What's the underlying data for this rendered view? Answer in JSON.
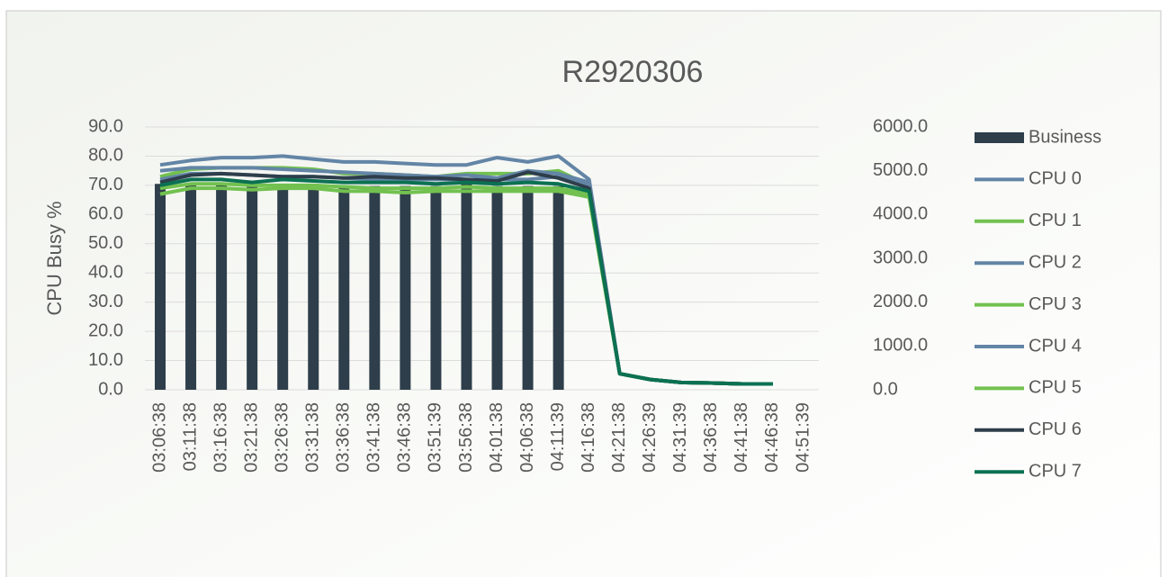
{
  "chart_data": {
    "type": "bar_line",
    "title": "R2920306",
    "y_label": "CPU Busy %",
    "categories": [
      "03:06:38",
      "03:11:38",
      "03:16:38",
      "03:21:38",
      "03:26:38",
      "03:31:38",
      "03:36:38",
      "03:41:38",
      "03:46:38",
      "03:51:39",
      "03:56:38",
      "04:01:38",
      "04:06:38",
      "04:11:39",
      "04:16:38",
      "04:21:38",
      "04:26:39",
      "04:31:39",
      "04:36:38",
      "04:41:38",
      "04:46:38",
      "04:51:39"
    ],
    "ylim": [
      0,
      90
    ],
    "yticks": [
      {
        "value": 0,
        "label": "0.0"
      },
      {
        "value": 10,
        "label": "10.0"
      },
      {
        "value": 20,
        "label": "20.0"
      },
      {
        "value": 30,
        "label": "30.0"
      },
      {
        "value": 40,
        "label": "40.0"
      },
      {
        "value": 50,
        "label": "50.0"
      },
      {
        "value": 60,
        "label": "60.0"
      },
      {
        "value": 70,
        "label": "70.0"
      },
      {
        "value": 80,
        "label": "80.0"
      },
      {
        "value": 90,
        "label": "90.0"
      }
    ],
    "y2lim": [
      0,
      6000
    ],
    "y2ticks": [
      {
        "value": 0,
        "label": "0.0"
      },
      {
        "value": 1000,
        "label": "1000.0"
      },
      {
        "value": 2000,
        "label": "2000.0"
      },
      {
        "value": 3000,
        "label": "3000.0"
      },
      {
        "value": 4000,
        "label": "4000.0"
      },
      {
        "value": 5000,
        "label": "5000.0"
      },
      {
        "value": 6000,
        "label": "6000.0"
      }
    ],
    "grid": true,
    "legend": "right",
    "series": [
      {
        "name": "Business",
        "type": "bar",
        "axis": "y2",
        "color": "#2e3e4a",
        "values": [
          4700,
          4700,
          4700,
          4650,
          4700,
          4700,
          4650,
          4650,
          4650,
          4650,
          4700,
          4650,
          4650,
          4650,
          null,
          null,
          null,
          null,
          null,
          null,
          null,
          null
        ]
      },
      {
        "name": "CPU 0",
        "type": "line",
        "color": "#6385a6",
        "values": [
          77,
          78.5,
          79.5,
          79.5,
          80,
          79,
          78,
          78,
          77.5,
          77,
          77,
          79.5,
          78,
          80,
          72,
          5.5,
          3.5,
          2.5,
          2.3,
          2,
          2,
          null
        ]
      },
      {
        "name": "CPU 1",
        "type": "line",
        "color": "#72c150",
        "values": [
          73,
          75.5,
          76,
          76,
          76,
          75.5,
          74,
          74,
          73.5,
          73,
          74,
          74,
          74,
          75,
          70,
          5.5,
          3.5,
          2.5,
          2.3,
          2,
          2,
          null
        ]
      },
      {
        "name": "CPU 2",
        "type": "line",
        "color": "#6385a6",
        "values": [
          75,
          76,
          76,
          76,
          75.5,
          75,
          74.5,
          74,
          73.5,
          73,
          73.5,
          72.5,
          75,
          74,
          71,
          5.5,
          3.5,
          2.5,
          2.3,
          2,
          2,
          null
        ]
      },
      {
        "name": "CPU 3",
        "type": "line",
        "color": "#72c150",
        "values": [
          69,
          70.5,
          70.5,
          70,
          70,
          70,
          69.5,
          69,
          69,
          69,
          69.5,
          69,
          69,
          69,
          67,
          5.5,
          3.5,
          2.5,
          2.3,
          2,
          2,
          null
        ]
      },
      {
        "name": "CPU 4",
        "type": "line",
        "color": "#6385a6",
        "values": [
          72,
          74,
          74,
          73.5,
          73,
          73,
          72.5,
          72,
          72,
          72,
          72,
          72,
          72,
          73,
          70,
          5.5,
          3.5,
          2.5,
          2.3,
          2,
          2,
          null
        ]
      },
      {
        "name": "CPU 5",
        "type": "line",
        "color": "#72c150",
        "values": [
          67,
          69,
          69,
          68.5,
          69,
          69,
          68,
          68,
          67.5,
          68,
          68,
          68,
          68,
          68,
          66,
          5.5,
          3.5,
          2.5,
          2.3,
          2,
          2,
          null
        ]
      },
      {
        "name": "CPU 6",
        "type": "line",
        "color": "#2e3e4a",
        "values": [
          71,
          73.5,
          74,
          73.5,
          73,
          73,
          72.5,
          73,
          72.5,
          72.5,
          72,
          71.5,
          74.5,
          72.5,
          69,
          5.5,
          3.5,
          2.5,
          2.3,
          2,
          2,
          null
        ]
      },
      {
        "name": "CPU 7",
        "type": "line",
        "color": "#0b7152",
        "values": [
          70,
          72,
          72,
          71,
          72,
          71.5,
          71,
          71,
          71,
          70.5,
          71,
          70.5,
          71,
          70.5,
          68,
          5.5,
          3.5,
          2.5,
          2.3,
          2,
          2,
          null
        ]
      }
    ]
  }
}
